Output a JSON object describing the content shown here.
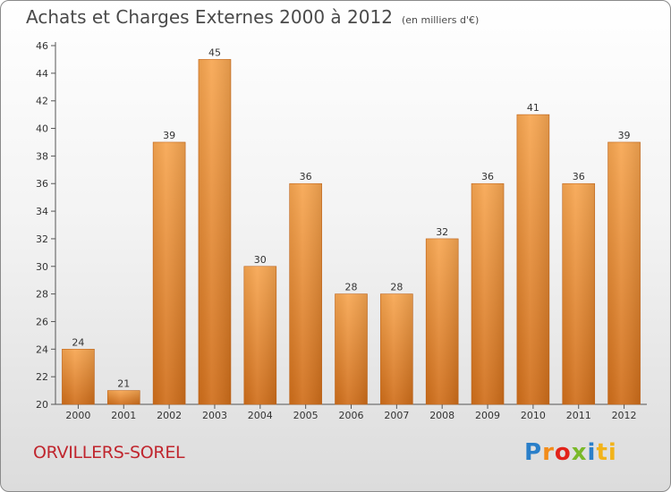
{
  "title": "Achats et Charges Externes 2000 à 2012",
  "subtitle": "(en milliers d'€)",
  "city": "ORVILLERS-SOREL",
  "logo_letters": [
    "P",
    "r",
    "o",
    "x",
    "i",
    "ti"
  ],
  "colors": {
    "bar_light": "#f7a651",
    "bar_dark": "#d06e1a",
    "city": "#c0262e"
  },
  "chart_data": {
    "type": "bar",
    "title": "Achats et Charges Externes 2000 à 2012",
    "subtitle": "(en milliers d'€)",
    "categories": [
      "2000",
      "2001",
      "2002",
      "2003",
      "2004",
      "2005",
      "2006",
      "2007",
      "2008",
      "2009",
      "2010",
      "2011",
      "2012"
    ],
    "values": [
      24,
      21,
      39,
      45,
      30,
      36,
      28,
      28,
      32,
      36,
      41,
      36,
      39
    ],
    "ylim": [
      20,
      46
    ],
    "yticks": [
      20,
      22,
      24,
      26,
      28,
      30,
      32,
      34,
      36,
      38,
      40,
      42,
      44,
      46
    ],
    "grid": false
  }
}
